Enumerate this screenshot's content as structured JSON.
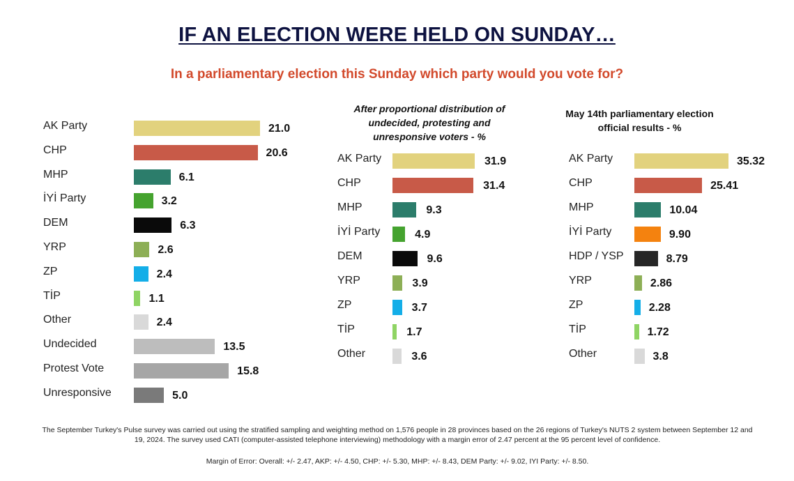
{
  "title": "IF AN ELECTION WERE HELD ON SUNDAY…",
  "subtitle": "In a parliamentary election this Sunday which party would you vote for?",
  "footnote": "The September Turkey's Pulse survey was carried out using the stratified sampling and weighting method on 1,576 people in 28 provinces based on the 26 regions of Turkey's NUTS 2 system between September 12 and 19, 2024. The survey used CATI (computer-assisted telephone interviewing) methodology with a margin error of 2.47 percent at the 95 percent level of confidence.",
  "margin_note": "Margin of Error: Overall: +/- 2.47, AKP: +/- 4.50, CHP: +/- 5.30, MHP: +/- 8.43, DEM Party: +/- 9.02, IYI Party: +/- 8.50.",
  "chart_data": [
    {
      "type": "bar",
      "orientation": "horizontal",
      "title": "",
      "categories": [
        "AK Party",
        "CHP",
        "MHP",
        "İYİ Party",
        "DEM",
        "YRP",
        "ZP",
        "TİP",
        "Other",
        "Undecided",
        "Protest Vote",
        "Unresponsive"
      ],
      "values": [
        21.0,
        20.6,
        6.1,
        3.2,
        6.3,
        2.6,
        2.4,
        1.1,
        2.4,
        13.5,
        15.8,
        5.0
      ],
      "labels": [
        "21.0",
        "20.6",
        "6.1",
        "3.2",
        "6.3",
        "2.6",
        "2.4",
        "1.1",
        "2.4",
        "13.5",
        "15.8",
        "5.0"
      ],
      "colors": [
        "#e2d27e",
        "#c85a48",
        "#2c7d6b",
        "#45a32f",
        "#0a0a0a",
        "#8daf56",
        "#14aee8",
        "#8fd464",
        "#d9d9d9",
        "#bdbdbd",
        "#a6a6a6",
        "#7a7a7a"
      ],
      "xlim": [
        0,
        21.0
      ]
    },
    {
      "type": "bar",
      "orientation": "horizontal",
      "title": "After proportional distribution of undecided, protesting and unresponsive voters - %",
      "categories": [
        "AK Party",
        "CHP",
        "MHP",
        "İYİ Party",
        "DEM",
        "YRP",
        "ZP",
        "TİP",
        "Other"
      ],
      "values": [
        31.9,
        31.4,
        9.3,
        4.9,
        9.6,
        3.9,
        3.7,
        1.7,
        3.6
      ],
      "labels": [
        "31.9",
        "31.4",
        "9.3",
        "4.9",
        "9.6",
        "3.9",
        "3.7",
        "1.7",
        "3.6"
      ],
      "colors": [
        "#e2d27e",
        "#c85a48",
        "#2c7d6b",
        "#45a32f",
        "#0a0a0a",
        "#8daf56",
        "#14aee8",
        "#8fd464",
        "#d9d9d9"
      ],
      "xlim": [
        0,
        31.9
      ]
    },
    {
      "type": "bar",
      "orientation": "horizontal",
      "title": "May 14th parliamentary election official results - %",
      "categories": [
        "AK Party",
        "CHP",
        "MHP",
        "İYİ Party",
        "HDP / YSP",
        "YRP",
        "ZP",
        "TİP",
        "Other"
      ],
      "values": [
        35.32,
        25.41,
        10.04,
        9.9,
        8.79,
        2.86,
        2.28,
        1.72,
        3.8
      ],
      "labels": [
        "35.32",
        "25.41",
        "10.04",
        "9.90",
        "8.79",
        "2.86",
        "2.28",
        "1.72",
        "3.8"
      ],
      "colors": [
        "#e2d27e",
        "#c85a48",
        "#2c7d6b",
        "#f4820f",
        "#262626",
        "#8daf56",
        "#14aee8",
        "#8fd464",
        "#d9d9d9"
      ],
      "xlim": [
        0,
        35.32
      ]
    }
  ]
}
